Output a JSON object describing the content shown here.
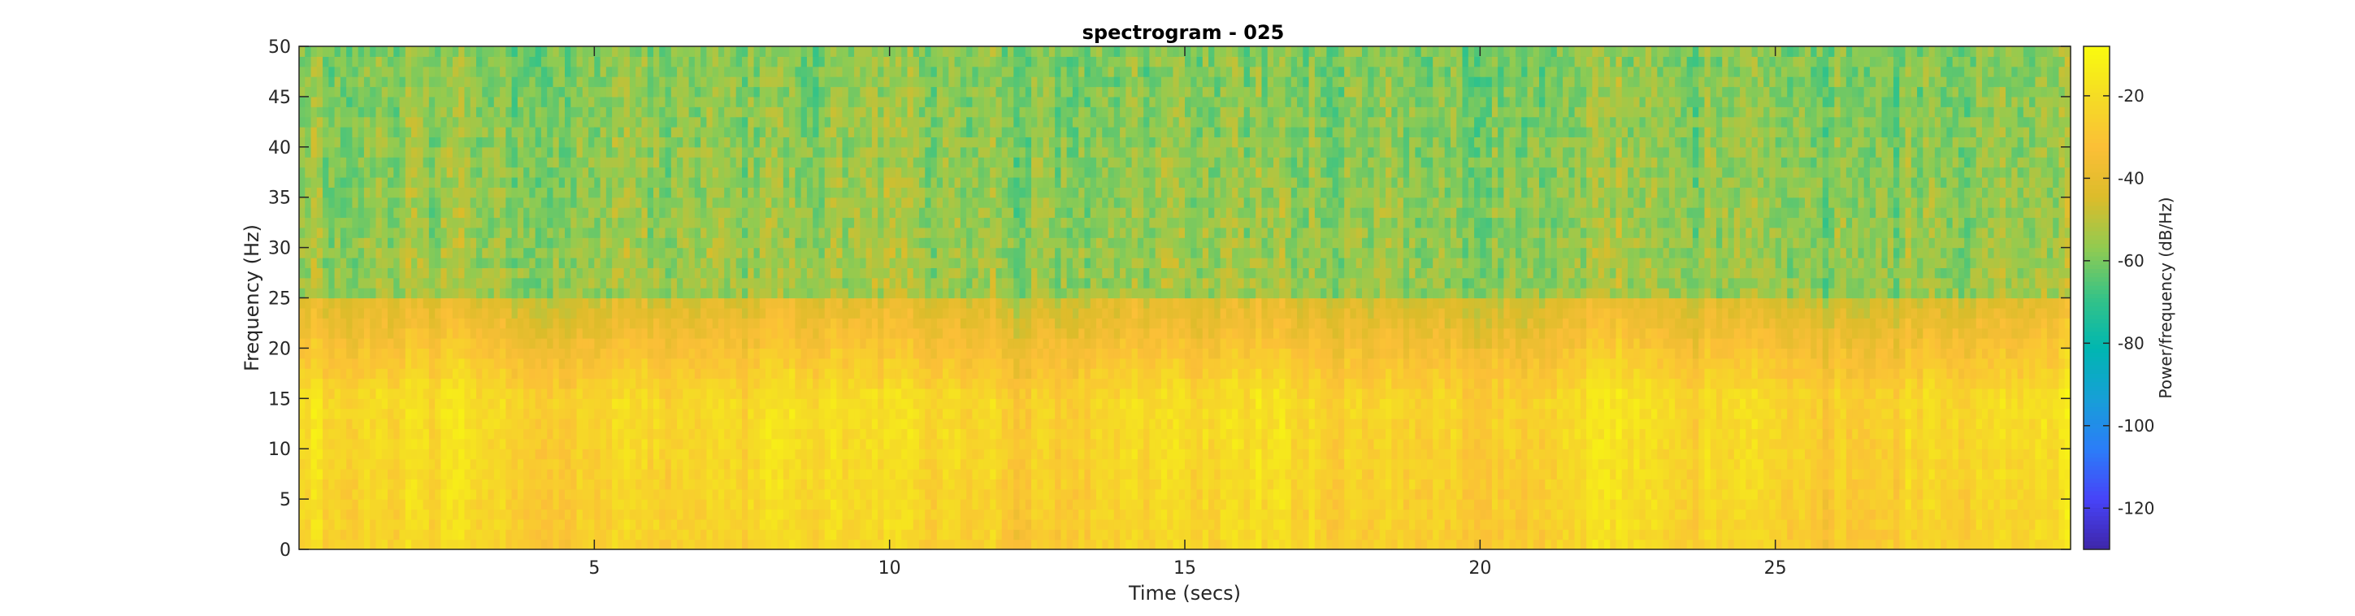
{
  "chart_data": {
    "type": "heatmap",
    "title": "spectrogram - 025",
    "xlabel": "Time (secs)",
    "ylabel": "Frequency (Hz)",
    "xlim": [
      0,
      30
    ],
    "ylim": [
      0,
      50
    ],
    "x_ticks": [
      5,
      10,
      15,
      20,
      25
    ],
    "y_ticks": [
      0,
      5,
      10,
      15,
      20,
      25,
      30,
      35,
      40,
      45,
      50
    ],
    "colorbar": {
      "label": "Power/frequency (dB/Hz)",
      "range": [
        -130,
        -8
      ],
      "ticks": [
        -120,
        -100,
        -80,
        -60,
        -40,
        -20
      ],
      "colormap": [
        "#3e26a8",
        "#4743f8",
        "#2b7df8",
        "#179fd7",
        "#00b6b1",
        "#35c387",
        "#91cb51",
        "#dcbc2a",
        "#fbbf37",
        "#f5dc25",
        "#f9fb0e"
      ]
    },
    "description_values": {
      "low_freq_0_15Hz_dB": -25,
      "mid_freq_15_25Hz_dB": -38,
      "high_freq_25_50Hz_dB": -55
    }
  }
}
